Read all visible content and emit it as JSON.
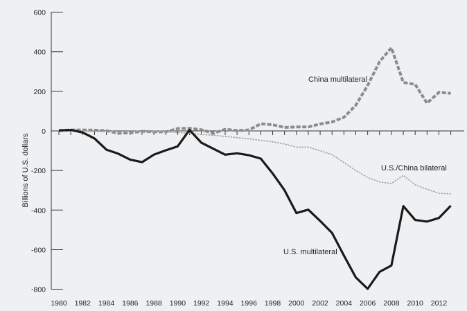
{
  "chart_data": {
    "type": "line",
    "title": "",
    "xlabel": "",
    "ylabel": "Billions of U.S. dollars",
    "ylim": [
      -800,
      600
    ],
    "xlim": [
      1980,
      2013
    ],
    "yticks": [
      -800,
      -600,
      -400,
      -200,
      0,
      200,
      400,
      600
    ],
    "xtick_labels": [
      1980,
      1982,
      1984,
      1986,
      1988,
      1990,
      1992,
      1994,
      1996,
      1998,
      2000,
      2002,
      2004,
      2006,
      2008,
      2010,
      2012
    ],
    "grid": false,
    "x": [
      1980,
      1981,
      1982,
      1983,
      1984,
      1985,
      1986,
      1987,
      1988,
      1989,
      1990,
      1991,
      1992,
      1993,
      1994,
      1995,
      1996,
      1997,
      1998,
      1999,
      2000,
      2001,
      2002,
      2003,
      2004,
      2005,
      2006,
      2007,
      2008,
      2009,
      2010,
      2011,
      2012,
      2013
    ],
    "series": [
      {
        "name": "China multilateral",
        "color": "#8c8c8c",
        "style": "dashed",
        "values": [
          2,
          5,
          5,
          4,
          1,
          -12,
          -10,
          -2,
          -5,
          -5,
          12,
          13,
          6,
          -12,
          8,
          2,
          5,
          36,
          31,
          18,
          20,
          20,
          35,
          45,
          69,
          130,
          230,
          350,
          420,
          245,
          235,
          140,
          195,
          190
        ]
      },
      {
        "name": "U.S./China bilateral",
        "color": "#a3a3a3",
        "style": "dotted",
        "values": [
          0,
          0,
          0,
          -2,
          -3,
          -4,
          -2,
          -3,
          -4,
          -6,
          -8,
          -12,
          -18,
          -22,
          -28,
          -34,
          -40,
          -48,
          -55,
          -66,
          -82,
          -82,
          -100,
          -120,
          -160,
          -200,
          -235,
          -258,
          -266,
          -225,
          -272,
          -295,
          -315,
          -318
        ]
      },
      {
        "name": "U.S. multilateral",
        "color": "#1a1a1a",
        "style": "solid",
        "values": [
          2,
          5,
          -8,
          -38,
          -95,
          -115,
          -145,
          -158,
          -120,
          -98,
          -78,
          5,
          -60,
          -90,
          -120,
          -113,
          -123,
          -140,
          -215,
          -300,
          -415,
          -398,
          -455,
          -515,
          -630,
          -740,
          -798,
          -712,
          -680,
          -380,
          -450,
          -458,
          -440,
          -378
        ]
      }
    ],
    "annotations": [
      {
        "text": "China multilateral",
        "series": 0
      },
      {
        "text": "U.S./China bilateral",
        "series": 1
      },
      {
        "text": "U.S. multilateral",
        "series": 2
      }
    ]
  }
}
